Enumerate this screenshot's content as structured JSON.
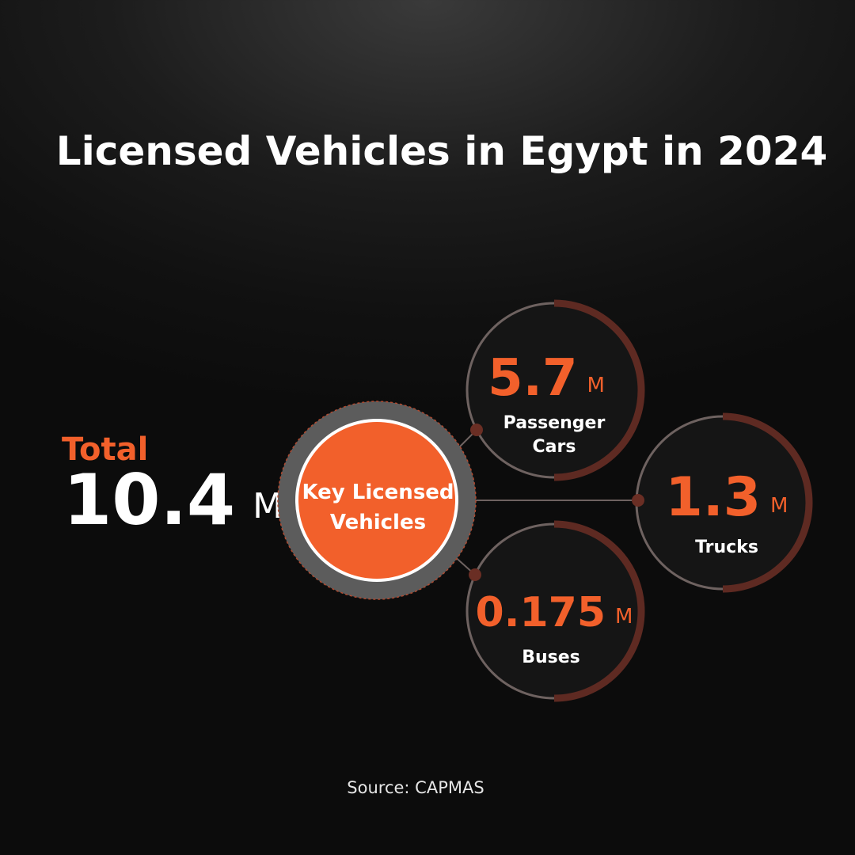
{
  "title": "Licensed Vehicles in Egypt in 2024",
  "total": {
    "label": "Total",
    "value": "10.4",
    "unit": "M"
  },
  "center": {
    "label_line1": "Key Licensed",
    "label_line2": "Vehicles"
  },
  "nodes": [
    {
      "value": "5.7",
      "unit": "M",
      "label_line1": "Passenger",
      "label_line2": "Cars"
    },
    {
      "value": "1.3",
      "unit": "M",
      "label_line1": "Trucks"
    },
    {
      "value": "0.175",
      "unit": "M",
      "label_line1": "Buses"
    }
  ],
  "source": "Source: CAPMAS",
  "colors": {
    "accent": "#f2602b",
    "ring_dark": "#5a2a22",
    "ring_light": "#7a6763"
  }
}
